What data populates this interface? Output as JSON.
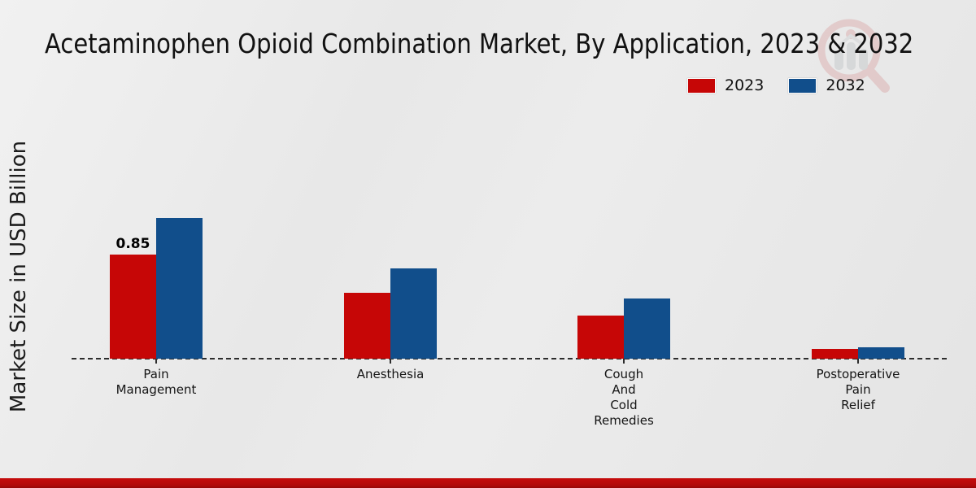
{
  "header": {
    "title": "Acetaminophen Opioid Combination Market, By Application, 2023 & 2032"
  },
  "legend": {
    "position": "top-right",
    "items": [
      {
        "label": "2023",
        "color": "#c60606"
      },
      {
        "label": "2032",
        "color": "#114e8b"
      }
    ]
  },
  "chart_data": {
    "type": "bar",
    "title": "Acetaminophen Opioid Combination Market, By Application, 2023 & 2032",
    "xlabel": "",
    "ylabel": "Market Size in USD Billion",
    "categories": [
      "Pain Management",
      "Anesthesia",
      "Cough And Cold Remedies",
      "Postoperative Pain Relief"
    ],
    "category_tick_labels": [
      "Pain\nManagement",
      "Anesthesia",
      "Cough\nAnd\nCold\nRemedies",
      "Postoperative\nPain\nRelief"
    ],
    "series": [
      {
        "name": "2023",
        "color": "#c60606",
        "values": [
          0.85,
          0.54,
          0.35,
          0.08
        ],
        "data_labels": [
          "0.85",
          null,
          null,
          null
        ]
      },
      {
        "name": "2032",
        "color": "#114e8b",
        "values": [
          1.15,
          0.74,
          0.49,
          0.09
        ],
        "data_labels": [
          null,
          null,
          null,
          null
        ]
      }
    ],
    "ylim": [
      0,
      1.3
    ],
    "grid": false,
    "axis_style": "dashed-baseline-only",
    "legend_position": "top-right"
  },
  "branding": {
    "watermark_icon": "magnifier-bar-chart-logo",
    "footer_bar_color": "#b30909"
  },
  "colors": {
    "background": "#e9e9e9",
    "series_2023": "#c60606",
    "series_2032": "#114e8b",
    "baseline": "#2d2d2d",
    "title_text": "#111111"
  }
}
